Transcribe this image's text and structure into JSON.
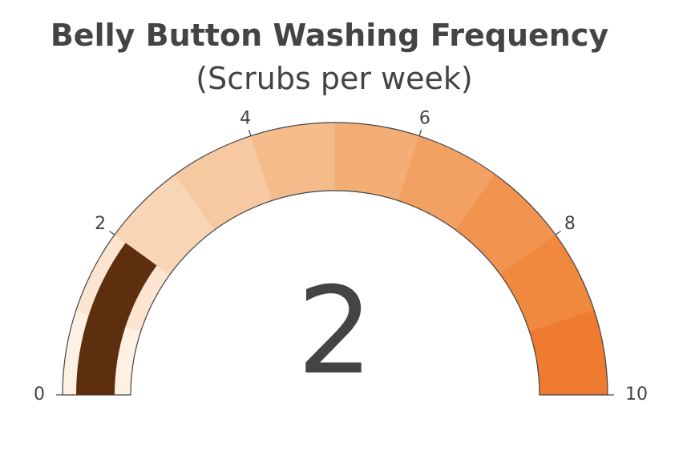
{
  "chart_data": {
    "type": "gauge",
    "title": "Belly Button Washing Frequency",
    "subtitle": "(Scrubs per week)",
    "value": 2,
    "value_label": "2",
    "range": [
      0,
      10
    ],
    "tick_values": [
      0,
      2,
      4,
      6,
      8,
      10
    ],
    "tick_labels": [
      "0",
      "2",
      "4",
      "6",
      "8",
      "10"
    ],
    "steps": [
      {
        "range": [
          0,
          1
        ],
        "color": "#fdf1e4"
      },
      {
        "range": [
          1,
          2
        ],
        "color": "#fbe5d0"
      },
      {
        "range": [
          2,
          3
        ],
        "color": "#f8d6b5"
      },
      {
        "range": [
          3,
          4
        ],
        "color": "#f6c9a0"
      },
      {
        "range": [
          4,
          5
        ],
        "color": "#f4bc8b"
      },
      {
        "range": [
          5,
          6
        ],
        "color": "#f3ae76"
      },
      {
        "range": [
          6,
          7
        ],
        "color": "#f2a162"
      },
      {
        "range": [
          7,
          8
        ],
        "color": "#f1944f"
      },
      {
        "range": [
          8,
          9
        ],
        "color": "#f0883e"
      },
      {
        "range": [
          9,
          10
        ],
        "color": "#ef7b30"
      }
    ],
    "bar_color": "#5e2f0e",
    "border_color": "#444444"
  }
}
